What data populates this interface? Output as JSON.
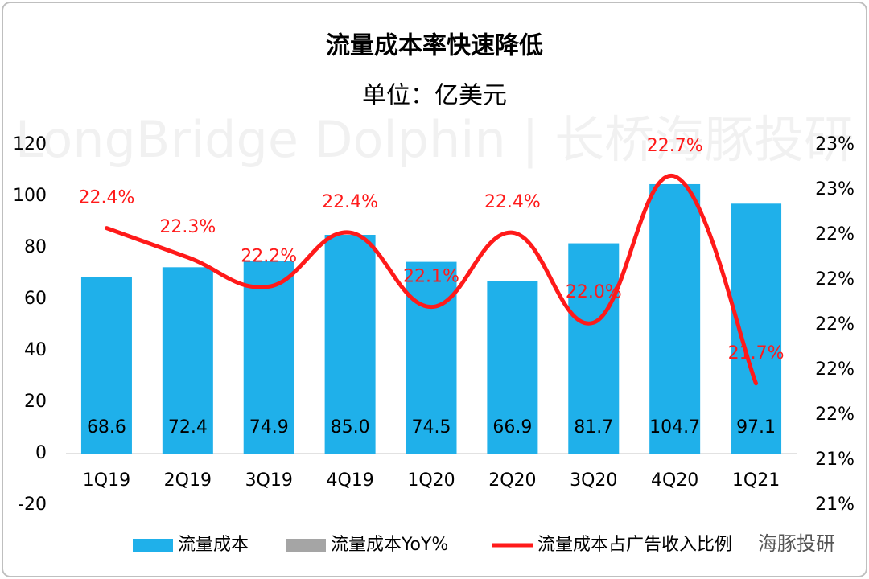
{
  "chart_data": {
    "type": "bar_line",
    "title": "流量成本率快速降低",
    "subtitle": "单位：亿美元",
    "watermark": "LongBridge Dolphin | 长桥海豚投研",
    "brand": "海豚投研",
    "categories": [
      "1Q19",
      "2Q19",
      "3Q19",
      "4Q19",
      "1Q20",
      "2Q20",
      "3Q20",
      "4Q20",
      "1Q21"
    ],
    "series": [
      {
        "name": "流量成本",
        "color": "#1fb0ea",
        "type": "bar",
        "values": [
          68.6,
          72.4,
          74.9,
          85.0,
          74.5,
          66.9,
          81.7,
          104.7,
          97.1
        ],
        "value_labels": [
          "68.6",
          "72.4",
          "74.9",
          "85.0",
          "74.5",
          "66.9",
          "81.7",
          "104.7",
          "97.1"
        ]
      },
      {
        "name": "流量成本YoY%",
        "color": "#a5a5a5",
        "type": "bar",
        "values": [
          null,
          null,
          null,
          null,
          null,
          null,
          null,
          null,
          null
        ]
      },
      {
        "name": "流量成本占广告收入比例",
        "color": "#ff1a1a",
        "type": "line",
        "axis": "y2",
        "values": [
          22.43,
          22.3,
          22.17,
          22.41,
          22.08,
          22.41,
          22.01,
          22.66,
          21.74
        ],
        "value_labels": [
          "22.4%",
          "22.3%",
          "22.2%",
          "22.4%",
          "22.1%",
          "22.4%",
          "22.0%",
          "22.7%",
          "21.7%"
        ]
      }
    ],
    "ylim": [
      -20,
      120
    ],
    "yticks": [
      -20,
      0,
      20,
      40,
      60,
      80,
      100,
      120
    ],
    "y2lim": [
      21.2,
      22.8
    ],
    "y2ticks": [
      {
        "value": 21.2,
        "label": "21%"
      },
      {
        "value": 21.4,
        "label": "21%"
      },
      {
        "value": 21.6,
        "label": "22%"
      },
      {
        "value": 21.8,
        "label": "22%"
      },
      {
        "value": 22.0,
        "label": "22%"
      },
      {
        "value": 22.2,
        "label": "22%"
      },
      {
        "value": 22.4,
        "label": "22%"
      },
      {
        "value": 22.6,
        "label": "23%"
      },
      {
        "value": 22.8,
        "label": "23%"
      }
    ],
    "legend": "bottom",
    "grid": false
  }
}
